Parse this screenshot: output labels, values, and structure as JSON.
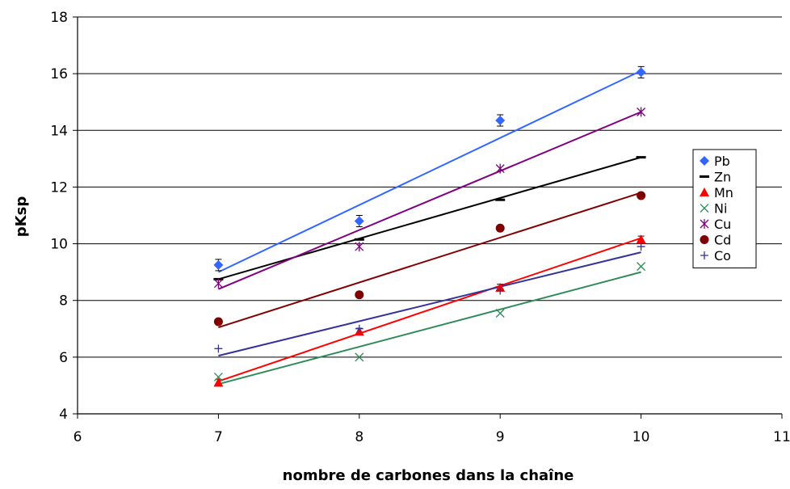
{
  "chart_data": {
    "type": "scatter",
    "title": "",
    "xlabel": "nombre de carbones dans la chaîne",
    "ylabel": "pKsp",
    "xlim": [
      6,
      11
    ],
    "ylim": [
      4,
      18
    ],
    "x_ticks": [
      6,
      7,
      8,
      9,
      10,
      11
    ],
    "y_ticks": [
      4,
      6,
      8,
      10,
      12,
      14,
      16,
      18
    ],
    "grid": "horizontal",
    "legend_position": "right",
    "series": [
      {
        "name": "Pb",
        "color": "#3366ff",
        "marker": "diamond",
        "x": [
          7,
          8,
          9,
          10
        ],
        "y": [
          9.25,
          10.8,
          14.35,
          16.05
        ],
        "y_err": [
          0.2,
          0.2,
          0.2,
          0.2
        ],
        "fit": {
          "x": [
            7,
            10
          ],
          "y": [
            9.0,
            16.1
          ]
        }
      },
      {
        "name": "Zn",
        "color": "#000000",
        "marker": "dash",
        "x": [
          7,
          8,
          9,
          10
        ],
        "y": [
          8.75,
          10.15,
          11.55,
          13.05
        ],
        "fit": {
          "x": [
            7,
            10
          ],
          "y": [
            8.75,
            13.05
          ]
        }
      },
      {
        "name": "Mn",
        "color": "#ff0000",
        "marker": "triangle",
        "x": [
          7,
          8,
          9,
          10
        ],
        "y": [
          5.1,
          6.9,
          8.45,
          10.15
        ],
        "y_err": [
          0.12,
          0.12,
          0.12,
          0.12
        ],
        "fit": {
          "x": [
            7,
            10
          ],
          "y": [
            5.15,
            10.2
          ]
        }
      },
      {
        "name": "Ni",
        "color": "#2e8b57",
        "marker": "x",
        "x": [
          7,
          8,
          9,
          10
        ],
        "y": [
          5.3,
          6.0,
          7.55,
          9.2
        ],
        "fit": {
          "x": [
            7,
            10
          ],
          "y": [
            5.05,
            9.0
          ]
        }
      },
      {
        "name": "Cu",
        "color": "#800080",
        "marker": "star",
        "x": [
          7,
          8,
          9,
          10
        ],
        "y": [
          8.6,
          9.9,
          12.65,
          14.65
        ],
        "fit": {
          "x": [
            7,
            10
          ],
          "y": [
            8.4,
            14.65
          ]
        }
      },
      {
        "name": "Cd",
        "color": "#800000",
        "marker": "circle",
        "x": [
          7,
          8,
          9,
          10
        ],
        "y": [
          7.25,
          8.2,
          10.55,
          11.7
        ],
        "fit": {
          "x": [
            7,
            10
          ],
          "y": [
            7.05,
            11.8
          ]
        }
      },
      {
        "name": "Co",
        "color": "#333399",
        "marker": "plus",
        "x": [
          7,
          8,
          9,
          10
        ],
        "y": [
          6.3,
          7.0,
          8.35,
          9.9
        ],
        "fit": {
          "x": [
            7,
            10
          ],
          "y": [
            6.05,
            9.7
          ]
        }
      }
    ]
  }
}
